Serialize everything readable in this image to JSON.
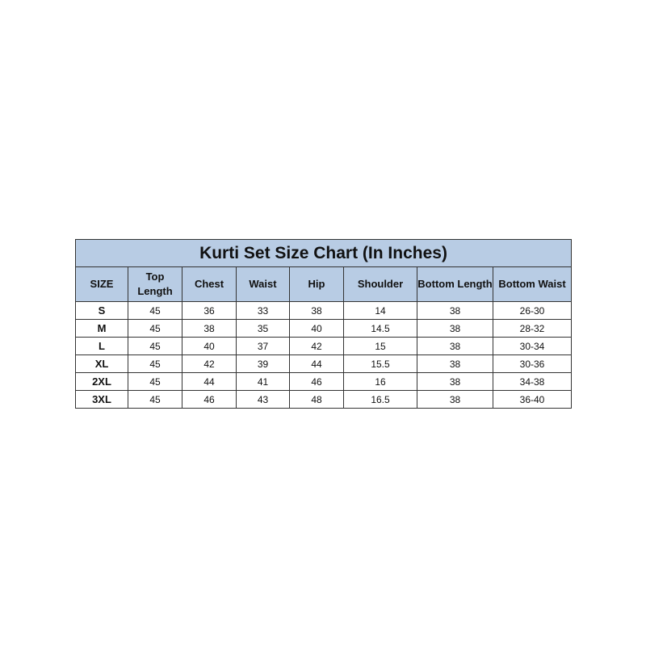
{
  "title": "Kurti Set Size Chart (In Inches)",
  "header_color": "#b8cce4",
  "columns": [
    "SIZE",
    "Top Length",
    "Chest",
    "Waist",
    "Hip",
    "Shoulder",
    "Bottom Length",
    "Bottom Waist"
  ],
  "rows": [
    [
      "S",
      "45",
      "36",
      "33",
      "38",
      "14",
      "38",
      "26-30"
    ],
    [
      "M",
      "45",
      "38",
      "35",
      "40",
      "14.5",
      "38",
      "28-32"
    ],
    [
      "L",
      "45",
      "40",
      "37",
      "42",
      "15",
      "38",
      "30-34"
    ],
    [
      "XL",
      "45",
      "42",
      "39",
      "44",
      "15.5",
      "38",
      "30-36"
    ],
    [
      "2XL",
      "45",
      "44",
      "41",
      "46",
      "16",
      "38",
      "34-38"
    ],
    [
      "3XL",
      "45",
      "46",
      "43",
      "48",
      "16.5",
      "38",
      "36-40"
    ]
  ]
}
